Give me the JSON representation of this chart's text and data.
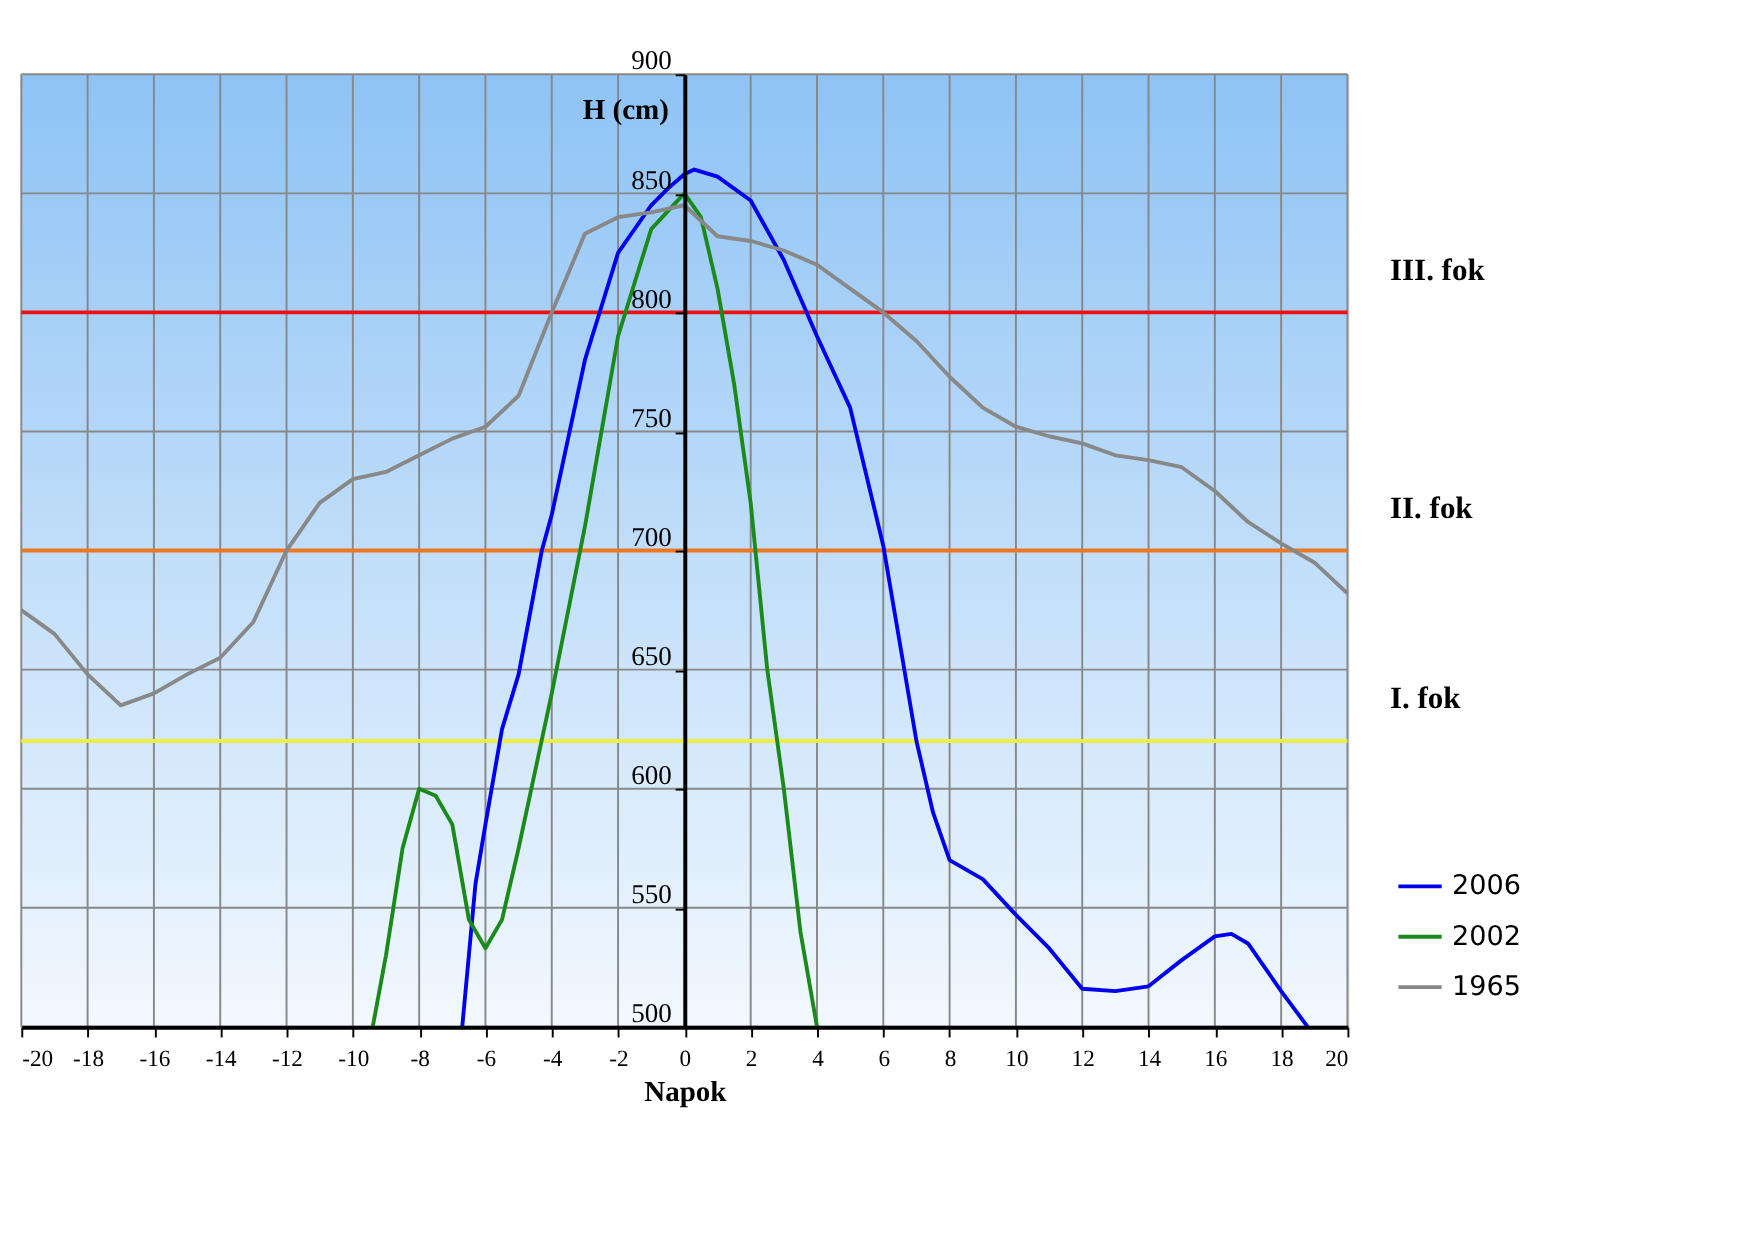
{
  "chart_data": {
    "type": "line",
    "xlabel": "Napok",
    "ylabel": "H (cm)",
    "xlim": [
      -20,
      20
    ],
    "xticks": [
      -20,
      -18,
      -16,
      -14,
      -12,
      -10,
      -8,
      -6,
      -4,
      -2,
      0,
      2,
      4,
      6,
      8,
      10,
      12,
      14,
      16,
      18,
      20
    ],
    "ylim": [
      500,
      900
    ],
    "yticks": [
      500,
      550,
      600,
      650,
      700,
      750,
      800,
      850,
      900
    ],
    "grid": true,
    "legend": "bottom right",
    "line_style": "solid",
    "marker": "none",
    "series": [
      {
        "name": "2006",
        "color": "#0000ee",
        "x": [
          -6.7,
          -6.3,
          -6,
          -5.5,
          -5,
          -4.3,
          -4,
          -3,
          -2,
          -1,
          -0.5,
          0,
          0.3,
          1,
          2,
          3,
          4,
          5,
          6,
          7,
          7.5,
          8,
          9,
          10,
          11,
          12,
          13,
          14,
          15,
          16,
          16.5,
          17,
          18,
          18.8
        ],
        "values": [
          500,
          560,
          585,
          625,
          648,
          700,
          715,
          780,
          825,
          845,
          852,
          858,
          860,
          857,
          847,
          822,
          790,
          760,
          702,
          620,
          590,
          570,
          562,
          547,
          533,
          516,
          515,
          517,
          528,
          538,
          539,
          535,
          515,
          500
        ]
      },
      {
        "name": "2002",
        "color": "#1a8a1a",
        "x": [
          -9.4,
          -9,
          -8.5,
          -8,
          -7.5,
          -7,
          -6.5,
          -6,
          -5.5,
          -5,
          -4,
          -3,
          -2,
          -1,
          0,
          0.5,
          1,
          1.5,
          2,
          2.5,
          3,
          3.5,
          4
        ],
        "values": [
          500,
          530,
          575,
          600,
          597,
          585,
          545,
          533,
          545,
          575,
          640,
          710,
          790,
          835,
          850,
          840,
          810,
          770,
          720,
          650,
          600,
          540,
          500
        ]
      },
      {
        "name": "1965",
        "color": "#888888",
        "x": [
          -20,
          -19,
          -18,
          -17,
          -16,
          -15,
          -14,
          -13,
          -12,
          -11,
          -10,
          -9,
          -8,
          -7,
          -6,
          -5,
          -4,
          -3,
          -2,
          -1,
          0,
          1,
          2,
          3,
          4,
          5,
          6,
          7,
          8,
          9,
          10,
          11,
          12,
          13,
          14,
          15,
          16,
          17,
          18,
          19,
          20
        ],
        "values": [
          675,
          665,
          648,
          635,
          640,
          648,
          655,
          670,
          700,
          720,
          730,
          733,
          740,
          747,
          752,
          765,
          800,
          833,
          840,
          842,
          845,
          832,
          830,
          826,
          820,
          810,
          800,
          788,
          773,
          760,
          752,
          748,
          745,
          740,
          738,
          735,
          725,
          712,
          703,
          695,
          682
        ]
      }
    ],
    "ref_lines": [
      {
        "axis": "y",
        "value": 800,
        "label": "III. fok",
        "color": "#ee1111"
      },
      {
        "axis": "y",
        "value": 700,
        "label": "II. fok",
        "color": "#ee7722"
      },
      {
        "axis": "y",
        "value": 620,
        "label": "I. fok",
        "color": "#eeee44"
      }
    ]
  }
}
